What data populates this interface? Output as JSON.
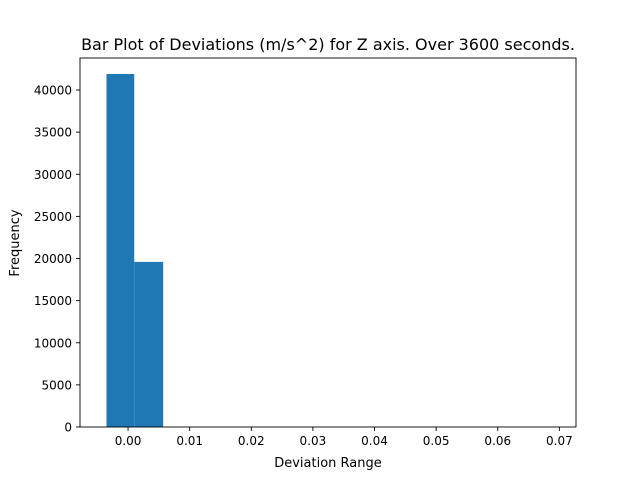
{
  "chart_data": {
    "type": "bar",
    "title": "Bar Plot of Deviations (m/s^2) for Z axis. Over 3600 seconds.",
    "xlabel": "Deviation Range",
    "ylabel": "Frequency",
    "bars": [
      {
        "x0": -0.0035,
        "x1": 0.001,
        "value": 41900
      },
      {
        "x0": 0.001,
        "x1": 0.0057,
        "value": 19600
      }
    ],
    "xlim": [
      -0.0078,
      0.0727
    ],
    "ylim": [
      0,
      43800
    ],
    "xticks": [
      0.0,
      0.01,
      0.02,
      0.03,
      0.04,
      0.05,
      0.06,
      0.07
    ],
    "xtick_labels": [
      "0.00",
      "0.01",
      "0.02",
      "0.03",
      "0.04",
      "0.05",
      "0.06",
      "0.07"
    ],
    "yticks": [
      0,
      5000,
      10000,
      15000,
      20000,
      25000,
      30000,
      35000,
      40000
    ],
    "ytick_labels": [
      "0",
      "5000",
      "10000",
      "15000",
      "20000",
      "25000",
      "30000",
      "35000",
      "40000"
    ],
    "bar_color": "#1f77b4",
    "grid": false,
    "legend": "none"
  }
}
